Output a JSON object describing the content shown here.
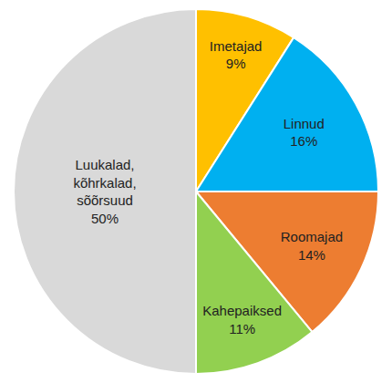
{
  "chart_data": {
    "type": "pie",
    "categories": [
      "Imetajad",
      "Linnud",
      "Roomajad",
      "Kahepaiksed",
      "Luukalad, kõhrkalad, sõõrsuud"
    ],
    "values": [
      9,
      16,
      14,
      11,
      50
    ],
    "value_labels": [
      "9%",
      "16%",
      "14%",
      "11%",
      "50%"
    ],
    "colors": [
      "#ffc000",
      "#00b0f0",
      "#ed7d31",
      "#92d050",
      "#d9d9d9"
    ],
    "data_labels": true
  }
}
